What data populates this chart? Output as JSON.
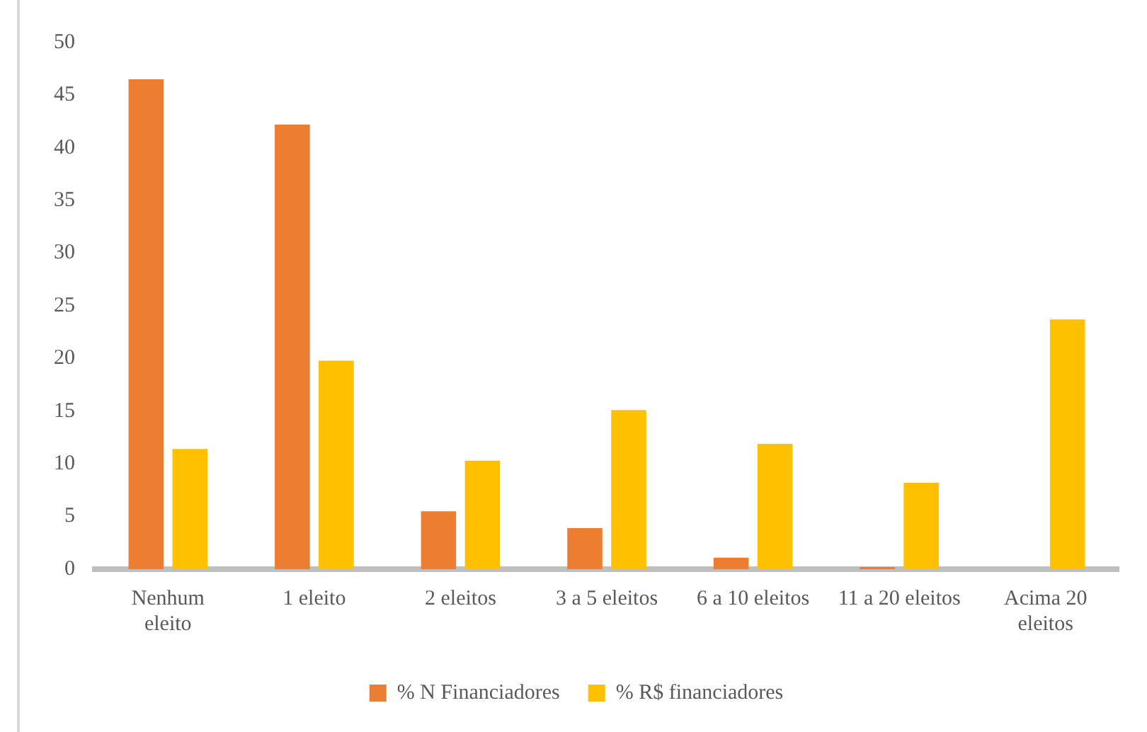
{
  "chart_data": {
    "type": "bar",
    "categories": [
      [
        "Nenhum",
        "eleito"
      ],
      "1 eleito",
      "2 eleitos",
      "3 a 5 eleitos",
      "6 a 10 eleitos",
      "11 a 20 eleitos",
      [
        "Acima 20",
        "eleitos"
      ]
    ],
    "series": [
      {
        "name": "% N Financiadores",
        "color": "#ed7d31",
        "values": [
          46.5,
          42.2,
          5.5,
          3.9,
          1.1,
          0.2,
          0
        ]
      },
      {
        "name": "% R$ financiadores",
        "color": "#ffc000",
        "values": [
          11.4,
          19.8,
          10.3,
          15.1,
          11.9,
          8.2,
          23.7
        ]
      }
    ],
    "ylim": [
      0,
      50
    ],
    "yticks": [
      0,
      5,
      10,
      15,
      20,
      25,
      30,
      35,
      40,
      45,
      50
    ],
    "grid": false,
    "legend": "bottom"
  }
}
